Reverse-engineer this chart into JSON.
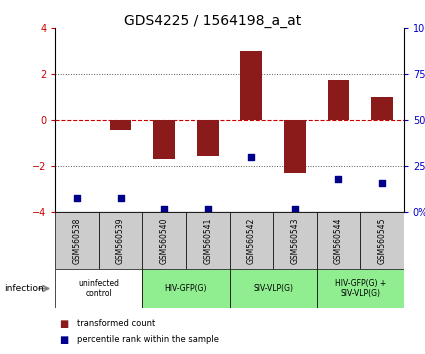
{
  "title": "GDS4225 / 1564198_a_at",
  "samples": [
    "GSM560538",
    "GSM560539",
    "GSM560540",
    "GSM560541",
    "GSM560542",
    "GSM560543",
    "GSM560544",
    "GSM560545"
  ],
  "transformed_counts": [
    0.0,
    -0.4,
    -1.7,
    -1.55,
    3.0,
    -2.3,
    1.75,
    1.0
  ],
  "percentile_ranks_pct": [
    8,
    8,
    2,
    2,
    30,
    2,
    18,
    16
  ],
  "groups": [
    {
      "label": "uninfected\ncontrol",
      "start": 0,
      "end": 2,
      "color": "#ffffff"
    },
    {
      "label": "HIV-GFP(G)",
      "start": 2,
      "end": 4,
      "color": "#90ee90"
    },
    {
      "label": "SIV-VLP(G)",
      "start": 4,
      "end": 6,
      "color": "#90ee90"
    },
    {
      "label": "HIV-GFP(G) +\nSIV-VLP(G)",
      "start": 6,
      "end": 8,
      "color": "#90ee90"
    }
  ],
  "bar_color": "#8b1a1a",
  "dot_color": "#00008b",
  "ylim_left": [
    -4,
    4
  ],
  "ylim_right": [
    0,
    100
  ],
  "yticks_left": [
    -4,
    -2,
    0,
    2,
    4
  ],
  "yticks_right": [
    0,
    25,
    50,
    75,
    100
  ],
  "ytick_labels_right": [
    "0%",
    "25%",
    "50%",
    "75%",
    "100%"
  ],
  "sample_bg_color": "#cccccc",
  "title_fontsize": 10
}
